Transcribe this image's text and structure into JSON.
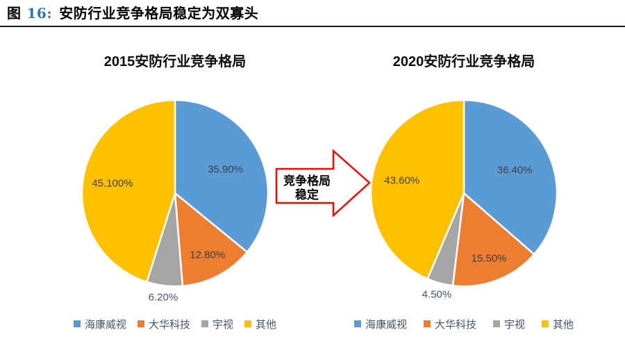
{
  "page": {
    "background": "#FFFFFF"
  },
  "header": {
    "figure_label": "图",
    "figure_number": "16:",
    "title": "安防行业竞争格局稳定为双寡头",
    "number_color": "#2E74B5"
  },
  "transition_arrow": {
    "line1": "竞争格局",
    "line2": "稳定",
    "border_color": "#FF0000",
    "fill_color": "#FFFFFF",
    "text_color": "#000000"
  },
  "chart_data": [
    {
      "type": "pie",
      "title": "2015安防行业竞争格局",
      "categories": [
        "海康威视",
        "大华科技",
        "宇视",
        "其他"
      ],
      "values": [
        35.9,
        12.8,
        6.2,
        45.1
      ],
      "data_labels": [
        "35.90%",
        "12.80%",
        "6.20%",
        "45.100%"
      ],
      "colors": [
        "#5B9BD5",
        "#ED7D31",
        "#A5A5A5",
        "#FFC000"
      ],
      "start_angle": "top",
      "direction": "clockwise",
      "legend_position": "bottom",
      "label_style": "percent-inside, smallest slice labeled outside"
    },
    {
      "type": "pie",
      "title": "2020安防行业竞争格局",
      "categories": [
        "海康威视",
        "大华科技",
        "宇视",
        "其他"
      ],
      "values": [
        36.4,
        15.5,
        4.5,
        43.6
      ],
      "data_labels": [
        "36.40%",
        "15.50%",
        "4.50%",
        "43.60%"
      ],
      "colors": [
        "#5B9BD5",
        "#ED7D31",
        "#A5A5A5",
        "#FFC000"
      ],
      "start_angle": "top",
      "direction": "clockwise",
      "legend_position": "bottom",
      "label_style": "percent-inside, smallest slice labeled outside"
    }
  ],
  "text_colors": {
    "inside_label": "#404040",
    "outside_label": "#44546A",
    "legend_text": "#44546A"
  }
}
